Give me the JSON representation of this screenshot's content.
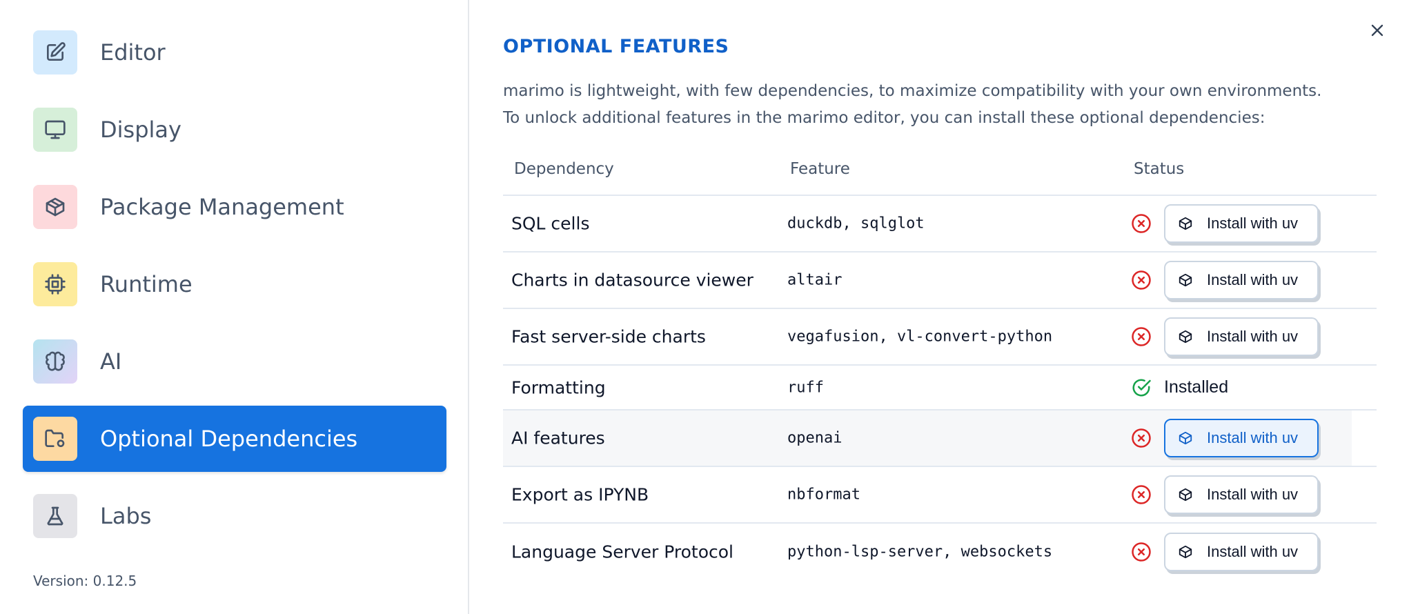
{
  "sidebar": {
    "items": [
      {
        "label": "Editor",
        "icon": "edit-icon",
        "color": "#d3eafd"
      },
      {
        "label": "Display",
        "icon": "monitor-icon",
        "color": "#d6efd9"
      },
      {
        "label": "Package Management",
        "icon": "package-icon",
        "color": "#fdd9dc"
      },
      {
        "label": "Runtime",
        "icon": "cpu-icon",
        "color": "#fdeb9c"
      },
      {
        "label": "AI",
        "icon": "brain-icon",
        "color": "#c9dcf0"
      },
      {
        "label": "Optional Dependencies",
        "icon": "folder-cog-icon",
        "color": "#fdd9a2",
        "active": true
      },
      {
        "label": "Labs",
        "icon": "flask-icon",
        "color": "#e4e4e8"
      }
    ],
    "version": "Version: 0.12.5"
  },
  "main": {
    "title": "OPTIONAL FEATURES",
    "description": [
      "marimo is lightweight, with few dependencies, to maximize compatibility with your own environments.",
      "To unlock additional features in the marimo editor, you can install these optional dependencies:"
    ],
    "columns": [
      "Dependency",
      "Feature",
      "Status"
    ],
    "install_label": "Install with uv",
    "installed_label": "Installed",
    "rows": [
      {
        "dependency": "SQL cells",
        "feature": "duckdb, sqlglot",
        "installed": false
      },
      {
        "dependency": "Charts in datasource viewer",
        "feature": "altair",
        "installed": false
      },
      {
        "dependency": "Fast server-side charts",
        "feature": "vegafusion, vl-convert-python",
        "installed": false
      },
      {
        "dependency": "Formatting",
        "feature": "ruff",
        "installed": true
      },
      {
        "dependency": "AI features",
        "feature": "openai",
        "installed": false,
        "hovered": true
      },
      {
        "dependency": "Export as IPYNB",
        "feature": "nbformat",
        "installed": false
      },
      {
        "dependency": "Language Server Protocol",
        "feature": "python-lsp-server, websockets",
        "installed": false
      }
    ]
  },
  "colors": {
    "accent": "#1673e0",
    "title": "#1060c8",
    "error": "#dc2626",
    "success": "#16a34a"
  }
}
